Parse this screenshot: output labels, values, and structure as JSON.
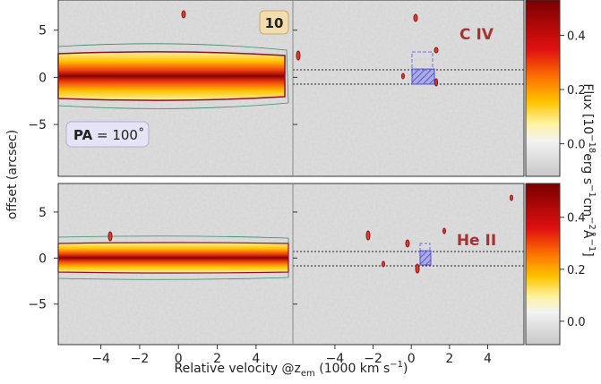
{
  "figure": {
    "ylabel": "offset (arcsec)",
    "xlabel": [
      {
        "text": "Relative velocity @z"
      },
      {
        "text": "em",
        "sub": true
      },
      {
        "text": " (1000 km s"
      },
      {
        "text": "−1",
        "sup": true
      },
      {
        "text": ")"
      }
    ],
    "clabel": [
      {
        "text": "Flux [10"
      },
      {
        "text": "−18",
        "sup": true
      },
      {
        "text": "erg s"
      },
      {
        "text": "−1",
        "sup": true
      },
      {
        "text": "cm"
      },
      {
        "text": "−2",
        "sup": true
      },
      {
        "text": "Å"
      },
      {
        "text": "−1",
        "sup": true
      },
      {
        "text": "]"
      }
    ]
  },
  "chart_data": [
    {
      "type": "image",
      "panel_label": "C IV",
      "badge": "10",
      "pa_label": {
        "name": "PA",
        "text": " = 100˚"
      },
      "xlim": [
        -6.2,
        5.9
      ],
      "ylim": [
        -10.5,
        8.2
      ],
      "yticks": [
        {
          "value": -5,
          "label": "−5"
        },
        0,
        5
      ],
      "clim": [
        -0.12,
        0.53
      ],
      "cticks": [
        {
          "value": 0,
          "label": "0.0"
        },
        0.2,
        0.4
      ]
    },
    {
      "type": "image",
      "panel_label": "He II",
      "xlim": [
        -6.2,
        5.9
      ],
      "ylim": [
        -9.4,
        8.1
      ],
      "xticks": [
        {
          "value": -4,
          "label": "−4"
        },
        {
          "value": -2,
          "label": "−2"
        },
        0,
        2,
        4
      ],
      "yticks": [
        {
          "value": -5,
          "label": "−5"
        },
        0,
        5
      ],
      "clim": [
        -0.09,
        0.53
      ],
      "cticks": [
        {
          "value": 0,
          "label": "0.0"
        },
        0.2,
        0.4
      ]
    }
  ]
}
